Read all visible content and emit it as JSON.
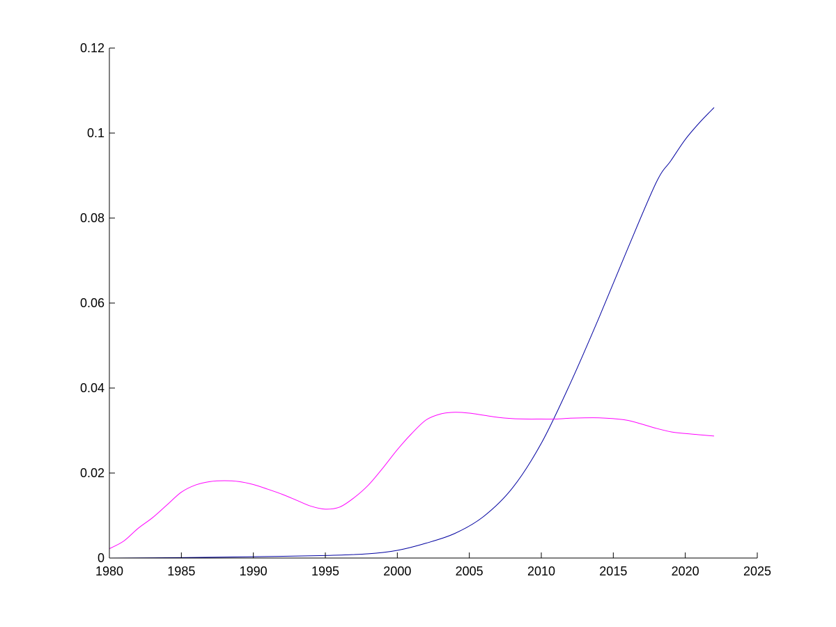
{
  "chart_data": {
    "type": "line",
    "title": "",
    "xlabel": "",
    "ylabel": "",
    "xlim": [
      1980,
      2025
    ],
    "ylim": [
      0,
      0.12
    ],
    "xticks": [
      1980,
      1985,
      1990,
      1995,
      2000,
      2005,
      2010,
      2015,
      2020,
      2025
    ],
    "xtick_labels": [
      "1980",
      "1985",
      "1990",
      "1995",
      "2000",
      "2005",
      "2010",
      "2015",
      "2020",
      "2025"
    ],
    "yticks": [
      0,
      0.02,
      0.04,
      0.06,
      0.08,
      0.1,
      0.12
    ],
    "ytick_labels": [
      "0",
      "0.02",
      "0.04",
      "0.06",
      "0.08",
      "0.1",
      "0.12"
    ],
    "grid": false,
    "legend": null,
    "series": [
      {
        "color": "#0000a0",
        "x": [
          1980,
          1985,
          1990,
          1995,
          1998,
          2000,
          2002,
          2004,
          2006,
          2008,
          2010,
          2012,
          2014,
          2016,
          2018,
          2019,
          2020,
          2021,
          2022
        ],
        "y": [
          0,
          0.0001,
          0.0003,
          0.0006,
          0.001,
          0.0018,
          0.0035,
          0.0058,
          0.0098,
          0.0165,
          0.027,
          0.041,
          0.0565,
          0.0728,
          0.0885,
          0.0935,
          0.0985,
          0.1025,
          0.106
        ]
      },
      {
        "color": "#ff00ff",
        "x": [
          1980,
          1981,
          1982,
          1983,
          1984,
          1985,
          1986,
          1987,
          1988,
          1989,
          1990,
          1991,
          1992,
          1993,
          1994,
          1995,
          1996,
          1997,
          1998,
          1999,
          2000,
          2001,
          2002,
          2003,
          2004,
          2005,
          2006,
          2007,
          2008,
          2009,
          2010,
          2011,
          2012,
          2013,
          2014,
          2015,
          2016,
          2017,
          2018,
          2019,
          2020,
          2021,
          2022
        ],
        "y": [
          0.0022,
          0.004,
          0.007,
          0.0095,
          0.0125,
          0.0155,
          0.0172,
          0.018,
          0.0182,
          0.018,
          0.0173,
          0.0162,
          0.015,
          0.0136,
          0.0122,
          0.0115,
          0.012,
          0.0142,
          0.0172,
          0.0212,
          0.0255,
          0.0293,
          0.0325,
          0.0339,
          0.0343,
          0.0341,
          0.0336,
          0.0331,
          0.0328,
          0.0327,
          0.0327,
          0.0327,
          0.0329,
          0.033,
          0.033,
          0.0328,
          0.0324,
          0.0315,
          0.0305,
          0.0297,
          0.0293,
          0.029,
          0.0287
        ]
      }
    ]
  }
}
